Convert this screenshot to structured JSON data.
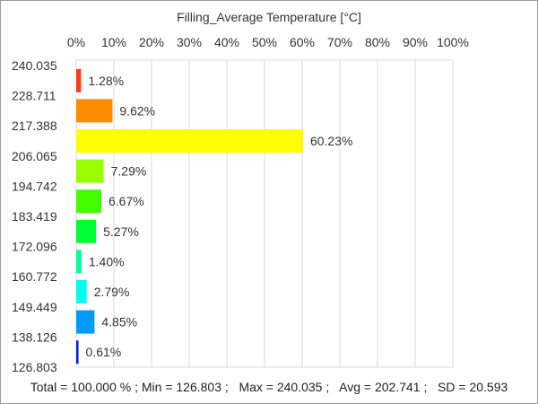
{
  "chart_data": {
    "type": "bar",
    "orientation": "horizontal",
    "title": "Filling_Average Temperature [°C]",
    "x_axis": {
      "position": "top",
      "range": [
        0,
        100
      ],
      "ticks": [
        "0%",
        "10%",
        "20%",
        "30%",
        "40%",
        "50%",
        "60%",
        "70%",
        "80%",
        "90%",
        "100%"
      ]
    },
    "y_axis": {
      "boundary_labels": [
        "240.035",
        "228.711",
        "217.388",
        "206.065",
        "194.742",
        "183.419",
        "172.096",
        "160.772",
        "149.449",
        "138.126",
        "126.803"
      ]
    },
    "bins": [
      {
        "value": 1.28,
        "label": "1.28%",
        "color": "#ff3b1a"
      },
      {
        "value": 9.62,
        "label": "9.62%",
        "color": "#ff8c00"
      },
      {
        "value": 60.23,
        "label": "60.23%",
        "color": "#ffff00"
      },
      {
        "value": 7.29,
        "label": "7.29%",
        "color": "#99ff00"
      },
      {
        "value": 6.67,
        "label": "6.67%",
        "color": "#44ff00"
      },
      {
        "value": 5.27,
        "label": "5.27%",
        "color": "#00ff33"
      },
      {
        "value": 1.4,
        "label": "1.40%",
        "color": "#00ff99"
      },
      {
        "value": 2.79,
        "label": "2.79%",
        "color": "#00ffee"
      },
      {
        "value": 4.85,
        "label": "4.85%",
        "color": "#0099ff"
      },
      {
        "value": 0.61,
        "label": "0.61%",
        "color": "#0022dd"
      }
    ],
    "grid": true
  },
  "stats_line": {
    "total": "Total = 100.000 %",
    "min": "Min = 126.803",
    "max": "Max = 240.035",
    "avg": "Avg = 202.741",
    "sd": "SD = 20.593"
  }
}
